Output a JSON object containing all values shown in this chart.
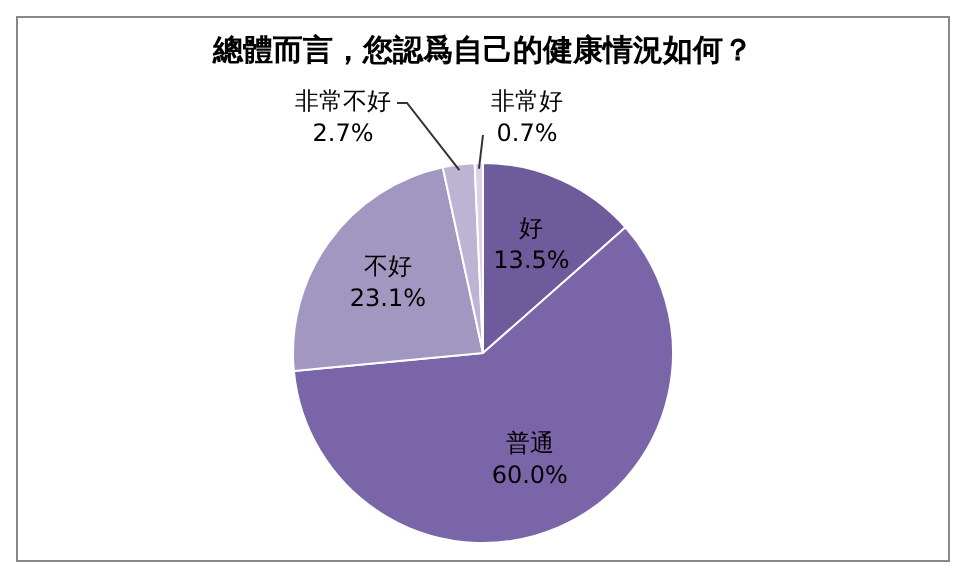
{
  "chart_data": {
    "type": "pie",
    "title": "總體而言，您認爲自己的健康情況如何？",
    "categories": [
      "好",
      "普通",
      "不好",
      "非常不好",
      "非常好"
    ],
    "values": [
      13.5,
      60.0,
      23.1,
      2.7,
      0.7
    ],
    "colors": [
      "#6e5b9c",
      "#7b65a9",
      "#a197c0",
      "#bcb4d2",
      "#d8d3e6"
    ],
    "value_labels": [
      "13.5%",
      "60.0%",
      "23.1%",
      "2.7%",
      "0.7%"
    ],
    "legend": false
  }
}
